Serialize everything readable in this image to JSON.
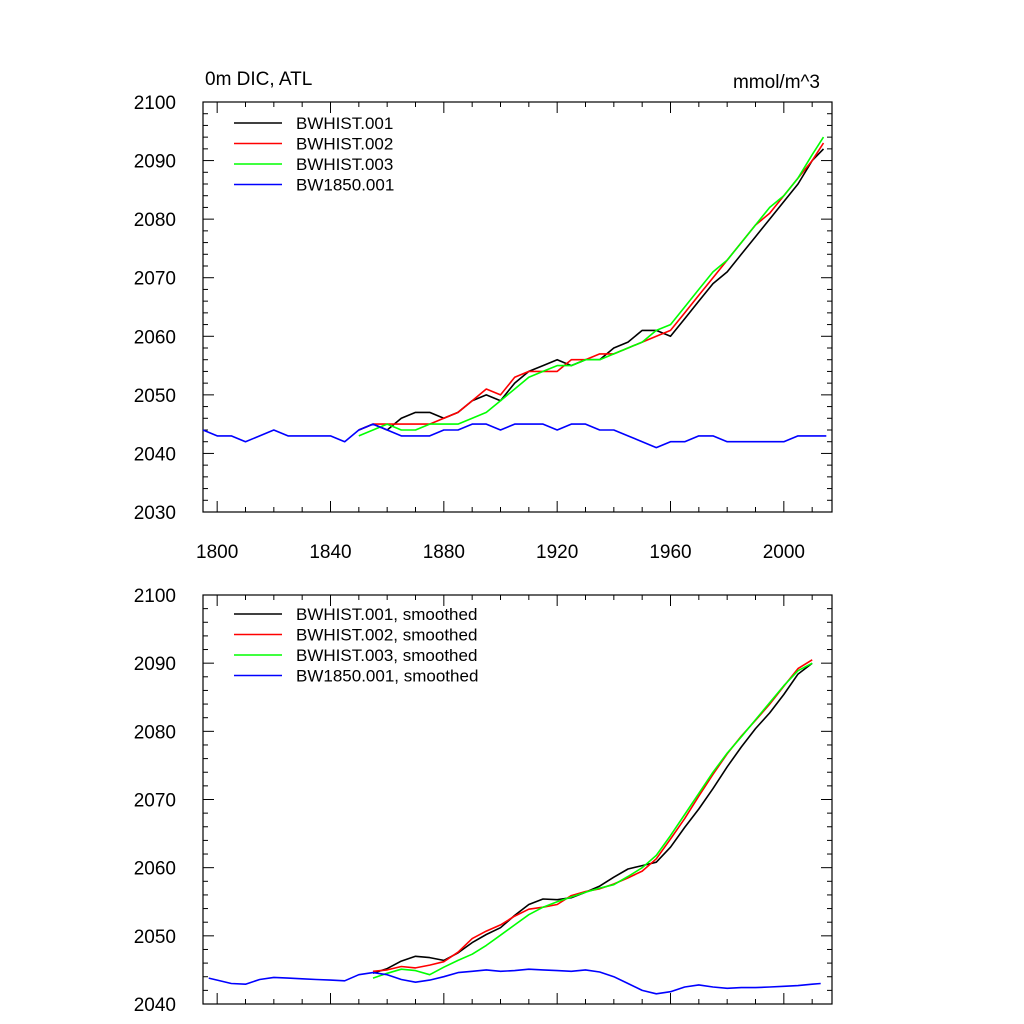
{
  "chart_data": [
    {
      "type": "line",
      "title": "0m DIC, ATL",
      "units": "mmol/m^3",
      "xlabel": "",
      "ylabel": "",
      "xlim": [
        1795,
        2017
      ],
      "ylim": [
        2030,
        2100
      ],
      "x_ticks": [
        1800,
        1840,
        1880,
        1920,
        1960,
        2000
      ],
      "y_ticks": [
        2030,
        2040,
        2050,
        2060,
        2070,
        2080,
        2090,
        2100
      ],
      "legend_position": "top-left",
      "grid": false,
      "series": [
        {
          "name": "BWHIST.001",
          "color": "#000000",
          "x": [
            1850,
            1855,
            1860,
            1865,
            1870,
            1875,
            1880,
            1885,
            1890,
            1895,
            1900,
            1905,
            1910,
            1915,
            1920,
            1925,
            1930,
            1935,
            1940,
            1945,
            1950,
            1955,
            1960,
            1965,
            1970,
            1975,
            1980,
            1985,
            1990,
            1995,
            2000,
            2005,
            2010,
            2014
          ],
          "y": [
            2044,
            2045,
            2044,
            2046,
            2047,
            2047,
            2046,
            2047,
            2049,
            2050,
            2049,
            2052,
            2054,
            2055,
            2056,
            2055,
            2056,
            2056,
            2058,
            2059,
            2061,
            2061,
            2060,
            2063,
            2066,
            2069,
            2071,
            2074,
            2077,
            2080,
            2083,
            2086,
            2090,
            2092
          ]
        },
        {
          "name": "BWHIST.002",
          "color": "#ff0000",
          "x": [
            1850,
            1855,
            1860,
            1865,
            1870,
            1875,
            1880,
            1885,
            1890,
            1895,
            1900,
            1905,
            1910,
            1915,
            1920,
            1925,
            1930,
            1935,
            1940,
            1945,
            1950,
            1955,
            1960,
            1965,
            1970,
            1975,
            1980,
            1985,
            1990,
            1995,
            2000,
            2005,
            2010,
            2014
          ],
          "y": [
            2044,
            2045,
            2045,
            2045,
            2045,
            2045,
            2046,
            2047,
            2049,
            2051,
            2050,
            2053,
            2054,
            2054,
            2054,
            2056,
            2056,
            2057,
            2057,
            2058,
            2059,
            2060,
            2061,
            2064,
            2067,
            2070,
            2073,
            2076,
            2079,
            2081,
            2084,
            2087,
            2090,
            2093
          ]
        },
        {
          "name": "BWHIST.003",
          "color": "#00ff00",
          "x": [
            1850,
            1855,
            1860,
            1865,
            1870,
            1875,
            1880,
            1885,
            1890,
            1895,
            1900,
            1905,
            1910,
            1915,
            1920,
            1925,
            1930,
            1935,
            1940,
            1945,
            1950,
            1955,
            1960,
            1965,
            1970,
            1975,
            1980,
            1985,
            1990,
            1995,
            2000,
            2005,
            2010,
            2014
          ],
          "y": [
            2043,
            2044,
            2045,
            2044,
            2044,
            2045,
            2045,
            2045,
            2046,
            2047,
            2049,
            2051,
            2053,
            2054,
            2055,
            2055,
            2056,
            2056,
            2057,
            2058,
            2059,
            2061,
            2062,
            2065,
            2068,
            2071,
            2073,
            2076,
            2079,
            2082,
            2084,
            2087,
            2091,
            2094
          ]
        },
        {
          "name": "BW1850.001",
          "color": "#0000ff",
          "x": [
            1795,
            1800,
            1805,
            1810,
            1815,
            1820,
            1825,
            1830,
            1835,
            1840,
            1845,
            1850,
            1855,
            1860,
            1865,
            1870,
            1875,
            1880,
            1885,
            1890,
            1895,
            1900,
            1905,
            1910,
            1915,
            1920,
            1925,
            1930,
            1935,
            1940,
            1945,
            1950,
            1955,
            1960,
            1965,
            1970,
            1975,
            1980,
            1985,
            1990,
            1995,
            2000,
            2005,
            2010,
            2015
          ],
          "y": [
            2044,
            2043,
            2043,
            2042,
            2043,
            2044,
            2043,
            2043,
            2043,
            2043,
            2042,
            2044,
            2045,
            2044,
            2043,
            2043,
            2043,
            2044,
            2044,
            2045,
            2045,
            2044,
            2045,
            2045,
            2045,
            2044,
            2045,
            2045,
            2044,
            2044,
            2043,
            2042,
            2041,
            2042,
            2042,
            2043,
            2043,
            2042,
            2042,
            2042,
            2042,
            2042,
            2043,
            2043,
            2043
          ]
        }
      ]
    },
    {
      "type": "line",
      "title": "",
      "xlabel": "",
      "ylabel": "",
      "xlim": [
        1795,
        2017
      ],
      "ylim": [
        2040,
        2100
      ],
      "x_ticks": [
        1800,
        1840,
        1880,
        1920,
        1960,
        2000
      ],
      "y_ticks": [
        2040,
        2050,
        2060,
        2070,
        2080,
        2090,
        2100
      ],
      "legend_position": "top-left",
      "grid": false,
      "series": [
        {
          "name": "BWHIST.001, smoothed",
          "color": "#000000",
          "x": [
            1855,
            1860,
            1865,
            1870,
            1875,
            1880,
            1885,
            1890,
            1895,
            1900,
            1905,
            1910,
            1915,
            1920,
            1925,
            1930,
            1935,
            1940,
            1945,
            1950,
            1955,
            1960,
            1965,
            1970,
            1975,
            1980,
            1985,
            1990,
            1995,
            2000,
            2005,
            2010
          ],
          "y": [
            2044.5,
            2045.2,
            2046.3,
            2047.0,
            2046.8,
            2046.4,
            2047.5,
            2049.0,
            2050.2,
            2051.2,
            2053.0,
            2054.6,
            2055.4,
            2055.3,
            2055.6,
            2056.4,
            2057.3,
            2058.6,
            2059.8,
            2060.3,
            2060.8,
            2063.0,
            2065.9,
            2068.6,
            2071.6,
            2074.8,
            2077.7,
            2080.4,
            2082.7,
            2085.4,
            2088.4,
            2090.0
          ]
        },
        {
          "name": "BWHIST.002, smoothed",
          "color": "#ff0000",
          "x": [
            1855,
            1860,
            1865,
            1870,
            1875,
            1880,
            1885,
            1890,
            1895,
            1900,
            1905,
            1910,
            1915,
            1920,
            1925,
            1930,
            1935,
            1940,
            1945,
            1950,
            1955,
            1960,
            1965,
            1970,
            1975,
            1980,
            1985,
            1990,
            1995,
            2000,
            2005,
            2010
          ],
          "y": [
            2044.8,
            2045.0,
            2045.5,
            2045.3,
            2045.7,
            2046.2,
            2047.6,
            2049.6,
            2050.7,
            2051.6,
            2052.9,
            2053.9,
            2054.2,
            2054.6,
            2055.9,
            2056.5,
            2056.9,
            2057.6,
            2058.5,
            2059.5,
            2061.3,
            2064.2,
            2067.2,
            2070.5,
            2073.7,
            2076.7,
            2079.3,
            2081.6,
            2084.0,
            2086.6,
            2089.2,
            2090.5
          ]
        },
        {
          "name": "BWHIST.003, smoothed",
          "color": "#00ff00",
          "x": [
            1855,
            1860,
            1865,
            1870,
            1875,
            1880,
            1885,
            1890,
            1895,
            1900,
            1905,
            1910,
            1915,
            1920,
            1925,
            1930,
            1935,
            1940,
            1945,
            1950,
            1955,
            1960,
            1965,
            1970,
            1975,
            1980,
            1985,
            1990,
            1995,
            2000,
            2005,
            2010
          ],
          "y": [
            2043.8,
            2044.5,
            2045.1,
            2044.9,
            2044.3,
            2045.4,
            2046.4,
            2047.3,
            2048.6,
            2050.1,
            2051.6,
            2053.1,
            2054.2,
            2055.0,
            2055.7,
            2056.4,
            2057.0,
            2057.5,
            2058.7,
            2060.0,
            2061.8,
            2064.7,
            2067.8,
            2070.9,
            2074.0,
            2076.8,
            2079.2,
            2081.7,
            2084.2,
            2086.7,
            2088.9,
            2090.0
          ]
        },
        {
          "name": "BW1850.001, smoothed",
          "color": "#0000ff",
          "x": [
            1797,
            1800,
            1805,
            1810,
            1815,
            1820,
            1825,
            1830,
            1835,
            1840,
            1845,
            1850,
            1855,
            1860,
            1865,
            1870,
            1875,
            1880,
            1885,
            1890,
            1895,
            1900,
            1905,
            1910,
            1915,
            1920,
            1925,
            1930,
            1935,
            1940,
            1945,
            1950,
            1955,
            1960,
            1965,
            1970,
            1975,
            1980,
            1985,
            1990,
            1995,
            2000,
            2005,
            2010,
            2013
          ],
          "y": [
            2043.8,
            2043.5,
            2043.0,
            2042.9,
            2043.6,
            2043.9,
            2043.8,
            2043.7,
            2043.6,
            2043.5,
            2043.4,
            2044.3,
            2044.6,
            2044.3,
            2043.6,
            2043.2,
            2043.5,
            2044.0,
            2044.6,
            2044.8,
            2045.0,
            2044.8,
            2044.9,
            2045.1,
            2045.0,
            2044.9,
            2044.8,
            2045.0,
            2044.7,
            2044.0,
            2043.0,
            2042.0,
            2041.5,
            2041.8,
            2042.5,
            2042.8,
            2042.5,
            2042.3,
            2042.4,
            2042.4,
            2042.5,
            2042.6,
            2042.7,
            2042.9,
            2043.0
          ]
        }
      ]
    }
  ]
}
